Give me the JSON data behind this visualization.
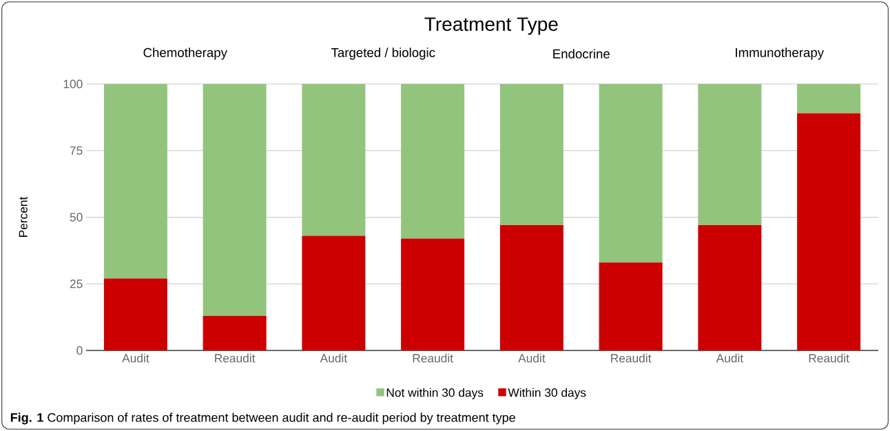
{
  "chart_data": {
    "type": "bar",
    "title": "Treatment Type",
    "ylabel": "Percent",
    "categories": [
      "Audit",
      "Reaudit",
      "Audit",
      "Reaudit",
      "Audit",
      "Reaudit",
      "Audit",
      "Reaudit"
    ],
    "series": [
      {
        "name": "Within 30 days",
        "color": "#cc0000",
        "values": [
          27,
          13,
          43,
          42,
          47,
          33,
          47,
          89
        ]
      },
      {
        "name": "Not within 30 days",
        "color": "#93c47d",
        "values": [
          73,
          87,
          57,
          58,
          53,
          67,
          53,
          11
        ]
      }
    ],
    "stacked": true,
    "ylim": [
      0,
      100
    ],
    "yticks": [
      0,
      25,
      50,
      75,
      100
    ],
    "grid": "y",
    "legend": "bottom",
    "annotations": [
      "Chemotherapy",
      "Targeted / biologic",
      "Endocrine",
      "Immunotherapy",
      "**Fig. 1** Comparison of rates of treatment between audit and re-audit period by treatment type"
    ]
  }
}
